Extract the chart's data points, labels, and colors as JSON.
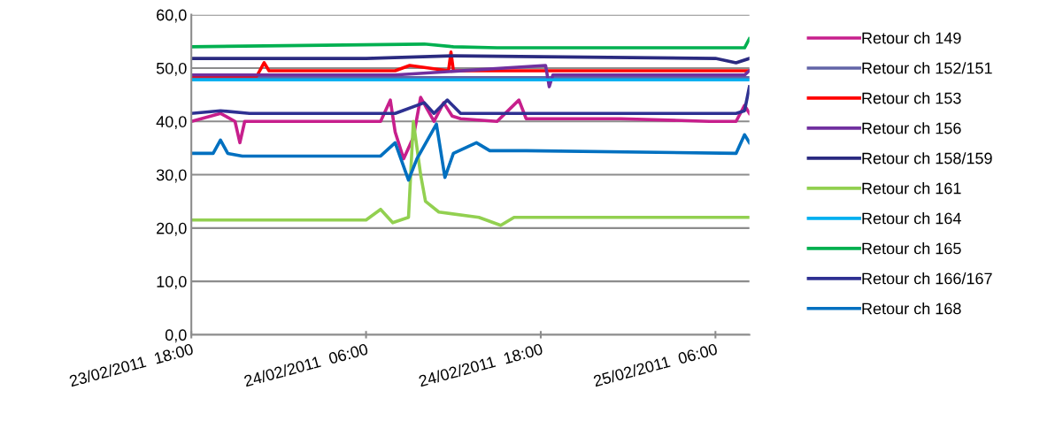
{
  "chart_data": {
    "type": "line",
    "xlim": [
      "2011-02-23T18:00",
      "2011-02-25T08:20"
    ],
    "ylim": [
      0,
      60
    ],
    "xticks": [
      {
        "value": "2011-02-23T18:00",
        "label": "23/02/2011  18:00"
      },
      {
        "value": "2011-02-24T06:00",
        "label": "24/02/2011  06:00"
      },
      {
        "value": "2011-02-24T18:00",
        "label": "24/02/2011  18:00"
      },
      {
        "value": "2011-02-25T06:00",
        "label": "25/02/2011  06:00"
      }
    ],
    "yticks": [
      {
        "value": 0,
        "label": "0,0"
      },
      {
        "value": 10,
        "label": "10,0"
      },
      {
        "value": 20,
        "label": "20,0"
      },
      {
        "value": 30,
        "label": "30,0"
      },
      {
        "value": 40,
        "label": "40,0"
      },
      {
        "value": 50,
        "label": "50,0"
      },
      {
        "value": 60,
        "label": "60,0"
      }
    ],
    "grid": "y",
    "legend": "right",
    "marker": "none",
    "line_style": "solid",
    "series": [
      {
        "name": "Retour ch 149",
        "color": "#c71f8c",
        "x": [
          "2011-02-23T18:00",
          "2011-02-23T20:00",
          "2011-02-23T21:00",
          "2011-02-23T21:20",
          "2011-02-23T21:40",
          "2011-02-23T23:00",
          "2011-02-24T03:00",
          "2011-02-24T07:00",
          "2011-02-24T07:40",
          "2011-02-24T08:00",
          "2011-02-24T08:35",
          "2011-02-24T09:15",
          "2011-02-24T09:45",
          "2011-02-24T10:40",
          "2011-02-24T11:20",
          "2011-02-24T11:55",
          "2011-02-24T12:30",
          "2011-02-24T15:00",
          "2011-02-24T16:30",
          "2011-02-24T17:00",
          "2011-02-24T23:30",
          "2011-02-25T05:35",
          "2011-02-25T07:25",
          "2011-02-25T08:00",
          "2011-02-25T08:20"
        ],
        "values": [
          40.0,
          41.5,
          40.0,
          36.0,
          40.0,
          40.0,
          40.0,
          40.0,
          44.0,
          38.0,
          33.0,
          37.0,
          44.5,
          40.0,
          43.5,
          41.0,
          40.5,
          40.0,
          44.0,
          40.5,
          40.5,
          40.0,
          40.0,
          43.0,
          41.5
        ]
      },
      {
        "name": "Retour ch 152/151",
        "color": "#6264a7",
        "x": [
          "2011-02-23T18:00",
          "2011-02-24T08:00",
          "2011-02-24T18:00",
          "2011-02-25T08:20"
        ],
        "values": [
          48.2,
          48.2,
          48.2,
          48.2
        ]
      },
      {
        "name": "Retour ch 153",
        "color": "#ff0000",
        "x": [
          "2011-02-23T18:00",
          "2011-02-23T22:30",
          "2011-02-23T23:00",
          "2011-02-23T23:20",
          "2011-02-24T03:00",
          "2011-02-24T08:00",
          "2011-02-24T09:00",
          "2011-02-24T11:40",
          "2011-02-24T11:50",
          "2011-02-24T12:00",
          "2011-02-24T17:00",
          "2011-02-25T06:00",
          "2011-02-25T08:20"
        ],
        "values": [
          48.5,
          48.5,
          51.0,
          49.5,
          49.5,
          49.5,
          50.5,
          49.5,
          53.0,
          49.5,
          49.5,
          49.5,
          49.5
        ]
      },
      {
        "name": "Retour ch 156",
        "color": "#7030a0",
        "x": [
          "2011-02-23T18:00",
          "2011-02-24T08:00",
          "2011-02-24T18:20",
          "2011-02-24T18:35",
          "2011-02-24T18:50",
          "2011-02-25T08:00",
          "2011-02-25T08:20"
        ],
        "values": [
          48.7,
          48.7,
          50.5,
          46.5,
          48.7,
          48.7,
          49.5
        ]
      },
      {
        "name": "Retour ch 158/159",
        "color": "#2a2a80",
        "x": [
          "2011-02-23T18:00",
          "2011-02-24T06:00",
          "2011-02-24T12:00",
          "2011-02-25T06:00",
          "2011-02-25T07:25",
          "2011-02-25T08:20"
        ],
        "values": [
          51.8,
          51.8,
          52.3,
          51.8,
          51.0,
          51.8
        ]
      },
      {
        "name": "Retour ch 161",
        "color": "#92d050",
        "x": [
          "2011-02-23T18:00",
          "2011-02-24T06:00",
          "2011-02-24T07:00",
          "2011-02-24T07:50",
          "2011-02-24T08:55",
          "2011-02-24T09:15",
          "2011-02-24T09:45",
          "2011-02-24T10:05",
          "2011-02-24T11:00",
          "2011-02-24T13:45",
          "2011-02-24T15:15",
          "2011-02-24T16:10",
          "2011-02-25T08:20"
        ],
        "values": [
          21.5,
          21.5,
          23.5,
          21.0,
          22.0,
          40.0,
          30.0,
          25.0,
          23.0,
          22.0,
          20.5,
          22.0,
          22.0
        ]
      },
      {
        "name": "Retour ch 164",
        "color": "#00b0f0",
        "x": [
          "2011-02-23T18:00",
          "2011-02-24T18:00",
          "2011-02-25T08:20"
        ],
        "values": [
          47.8,
          47.8,
          47.8
        ]
      },
      {
        "name": "Retour ch 165",
        "color": "#00b050",
        "x": [
          "2011-02-23T18:00",
          "2011-02-24T10:00",
          "2011-02-24T12:00",
          "2011-02-24T15:00",
          "2011-02-25T08:00",
          "2011-02-25T08:20"
        ],
        "values": [
          54.0,
          54.5,
          54.0,
          53.8,
          53.8,
          55.5
        ]
      },
      {
        "name": "Retour ch 166/167",
        "color": "#2e3192",
        "x": [
          "2011-02-23T18:00",
          "2011-02-23T20:00",
          "2011-02-23T22:00",
          "2011-02-24T08:00",
          "2011-02-24T10:00",
          "2011-02-24T10:40",
          "2011-02-24T11:35",
          "2011-02-24T12:30",
          "2011-02-25T07:25",
          "2011-02-25T08:00",
          "2011-02-25T08:20"
        ],
        "values": [
          41.5,
          42.0,
          41.5,
          41.5,
          43.5,
          41.5,
          44.0,
          41.5,
          41.5,
          42.0,
          46.5
        ]
      },
      {
        "name": "Retour ch 168",
        "color": "#0070c0",
        "x": [
          "2011-02-23T18:00",
          "2011-02-23T19:30",
          "2011-02-23T20:00",
          "2011-02-23T20:30",
          "2011-02-23T21:30",
          "2011-02-24T07:00",
          "2011-02-24T08:00",
          "2011-02-24T08:55",
          "2011-02-24T09:30",
          "2011-02-24T10:50",
          "2011-02-24T11:25",
          "2011-02-24T12:00",
          "2011-02-24T13:35",
          "2011-02-24T14:30",
          "2011-02-24T17:00",
          "2011-02-25T07:25",
          "2011-02-25T08:00",
          "2011-02-25T08:20"
        ],
        "values": [
          34.0,
          34.0,
          36.5,
          34.0,
          33.5,
          33.5,
          36.0,
          29.0,
          33.0,
          39.5,
          29.5,
          34.0,
          36.0,
          34.5,
          34.5,
          34.0,
          37.5,
          36.0
        ]
      }
    ]
  }
}
